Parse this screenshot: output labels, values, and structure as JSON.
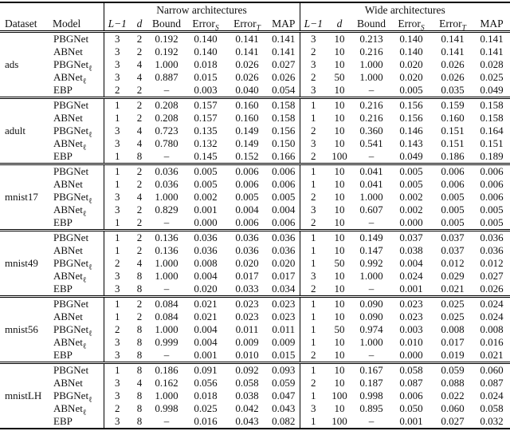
{
  "colors": {
    "background": "#ffffff",
    "text": "#111111",
    "rule": "#000000"
  },
  "table": {
    "group_headers": {
      "narrow": "Narrow architectures",
      "wide": "Wide architectures"
    },
    "row_headers": {
      "dataset": "Dataset",
      "model": "Model"
    },
    "columns": [
      {
        "main": "L−1",
        "sub": "",
        "italic": true
      },
      {
        "main": "d",
        "sub": "",
        "italic": true
      },
      {
        "main": "Bound",
        "sub": "",
        "italic": false
      },
      {
        "main": "Error",
        "sub": "S",
        "italic": false
      },
      {
        "main": "Error",
        "sub": "T",
        "italic": false
      },
      {
        "main": "MAP",
        "sub": "",
        "italic": false
      }
    ],
    "missing_value": "–",
    "sections": [
      {
        "dataset": "ads",
        "rows": [
          {
            "model": "PBGNet",
            "sub": "",
            "values": [
              "3",
              "2",
              "0.192",
              "0.140",
              "0.141",
              "0.141",
              "3",
              "10",
              "0.213",
              "0.140",
              "0.141",
              "0.141"
            ]
          },
          {
            "model": "ABNet",
            "sub": "",
            "values": [
              "3",
              "2",
              "0.192",
              "0.140",
              "0.141",
              "0.141",
              "2",
              "10",
              "0.216",
              "0.140",
              "0.141",
              "0.141"
            ]
          },
          {
            "model": "PBGNet",
            "sub": "ℓ",
            "values": [
              "3",
              "4",
              "1.000",
              "0.018",
              "0.026",
              "0.027",
              "3",
              "10",
              "1.000",
              "0.020",
              "0.026",
              "0.028"
            ]
          },
          {
            "model": "ABNet",
            "sub": "ℓ",
            "values": [
              "3",
              "4",
              "0.887",
              "0.015",
              "0.026",
              "0.026",
              "2",
              "50",
              "1.000",
              "0.020",
              "0.026",
              "0.025"
            ]
          },
          {
            "model": "EBP",
            "sub": "",
            "values": [
              "2",
              "2",
              "–",
              "0.003",
              "0.040",
              "0.054",
              "3",
              "10",
              "–",
              "0.005",
              "0.035",
              "0.049"
            ]
          }
        ]
      },
      {
        "dataset": "adult",
        "rows": [
          {
            "model": "PBGNet",
            "sub": "",
            "values": [
              "1",
              "2",
              "0.208",
              "0.157",
              "0.160",
              "0.158",
              "1",
              "10",
              "0.216",
              "0.156",
              "0.159",
              "0.158"
            ]
          },
          {
            "model": "ABNet",
            "sub": "",
            "values": [
              "1",
              "2",
              "0.208",
              "0.157",
              "0.160",
              "0.158",
              "1",
              "10",
              "0.216",
              "0.156",
              "0.160",
              "0.158"
            ]
          },
          {
            "model": "PBGNet",
            "sub": "ℓ",
            "values": [
              "3",
              "4",
              "0.723",
              "0.135",
              "0.149",
              "0.156",
              "2",
              "10",
              "0.360",
              "0.146",
              "0.151",
              "0.164"
            ]
          },
          {
            "model": "ABNet",
            "sub": "ℓ",
            "values": [
              "3",
              "4",
              "0.780",
              "0.132",
              "0.149",
              "0.150",
              "3",
              "10",
              "0.541",
              "0.143",
              "0.151",
              "0.151"
            ]
          },
          {
            "model": "EBP",
            "sub": "",
            "values": [
              "1",
              "8",
              "–",
              "0.145",
              "0.152",
              "0.166",
              "2",
              "100",
              "–",
              "0.049",
              "0.186",
              "0.189"
            ]
          }
        ]
      },
      {
        "dataset": "mnist17",
        "rows": [
          {
            "model": "PBGNet",
            "sub": "",
            "values": [
              "1",
              "2",
              "0.036",
              "0.005",
              "0.006",
              "0.006",
              "1",
              "10",
              "0.041",
              "0.005",
              "0.006",
              "0.006"
            ]
          },
          {
            "model": "ABNet",
            "sub": "",
            "values": [
              "1",
              "2",
              "0.036",
              "0.005",
              "0.006",
              "0.006",
              "1",
              "10",
              "0.041",
              "0.005",
              "0.006",
              "0.006"
            ]
          },
          {
            "model": "PBGNet",
            "sub": "ℓ",
            "values": [
              "3",
              "4",
              "1.000",
              "0.002",
              "0.005",
              "0.005",
              "2",
              "10",
              "1.000",
              "0.002",
              "0.005",
              "0.006"
            ]
          },
          {
            "model": "ABNet",
            "sub": "ℓ",
            "values": [
              "3",
              "2",
              "0.829",
              "0.001",
              "0.004",
              "0.004",
              "3",
              "10",
              "0.607",
              "0.002",
              "0.005",
              "0.005"
            ]
          },
          {
            "model": "EBP",
            "sub": "",
            "values": [
              "1",
              "2",
              "–",
              "0.000",
              "0.006",
              "0.006",
              "2",
              "10",
              "–",
              "0.000",
              "0.005",
              "0.005"
            ]
          }
        ]
      },
      {
        "dataset": "mnist49",
        "rows": [
          {
            "model": "PBGNet",
            "sub": "",
            "values": [
              "1",
              "2",
              "0.136",
              "0.036",
              "0.036",
              "0.036",
              "1",
              "10",
              "0.149",
              "0.037",
              "0.037",
              "0.036"
            ]
          },
          {
            "model": "ABNet",
            "sub": "",
            "values": [
              "1",
              "2",
              "0.136",
              "0.036",
              "0.036",
              "0.036",
              "1",
              "10",
              "0.147",
              "0.038",
              "0.037",
              "0.036"
            ]
          },
          {
            "model": "PBGNet",
            "sub": "ℓ",
            "values": [
              "2",
              "4",
              "1.000",
              "0.008",
              "0.020",
              "0.020",
              "1",
              "50",
              "0.992",
              "0.004",
              "0.012",
              "0.012"
            ]
          },
          {
            "model": "ABNet",
            "sub": "ℓ",
            "values": [
              "3",
              "8",
              "1.000",
              "0.004",
              "0.017",
              "0.017",
              "3",
              "10",
              "1.000",
              "0.024",
              "0.029",
              "0.027"
            ]
          },
          {
            "model": "EBP",
            "sub": "",
            "values": [
              "3",
              "8",
              "–",
              "0.020",
              "0.033",
              "0.034",
              "2",
              "10",
              "–",
              "0.001",
              "0.021",
              "0.026"
            ]
          }
        ]
      },
      {
        "dataset": "mnist56",
        "rows": [
          {
            "model": "PBGNet",
            "sub": "",
            "values": [
              "1",
              "2",
              "0.084",
              "0.021",
              "0.023",
              "0.023",
              "1",
              "10",
              "0.090",
              "0.023",
              "0.025",
              "0.024"
            ]
          },
          {
            "model": "ABNet",
            "sub": "",
            "values": [
              "1",
              "2",
              "0.084",
              "0.021",
              "0.023",
              "0.023",
              "1",
              "10",
              "0.090",
              "0.023",
              "0.025",
              "0.024"
            ]
          },
          {
            "model": "PBGNet",
            "sub": "ℓ",
            "values": [
              "2",
              "8",
              "1.000",
              "0.004",
              "0.011",
              "0.011",
              "1",
              "50",
              "0.974",
              "0.003",
              "0.008",
              "0.008"
            ]
          },
          {
            "model": "ABNet",
            "sub": "ℓ",
            "values": [
              "3",
              "8",
              "0.999",
              "0.004",
              "0.009",
              "0.009",
              "1",
              "10",
              "1.000",
              "0.010",
              "0.017",
              "0.016"
            ]
          },
          {
            "model": "EBP",
            "sub": "",
            "values": [
              "3",
              "8",
              "–",
              "0.001",
              "0.010",
              "0.015",
              "2",
              "10",
              "–",
              "0.000",
              "0.019",
              "0.021"
            ]
          }
        ]
      },
      {
        "dataset": "mnistLH",
        "rows": [
          {
            "model": "PBGNet",
            "sub": "",
            "values": [
              "1",
              "8",
              "0.186",
              "0.091",
              "0.092",
              "0.093",
              "1",
              "10",
              "0.167",
              "0.058",
              "0.059",
              "0.060"
            ]
          },
          {
            "model": "ABNet",
            "sub": "",
            "values": [
              "3",
              "4",
              "0.162",
              "0.056",
              "0.058",
              "0.059",
              "2",
              "10",
              "0.187",
              "0.087",
              "0.088",
              "0.087"
            ]
          },
          {
            "model": "PBGNet",
            "sub": "ℓ",
            "values": [
              "3",
              "8",
              "1.000",
              "0.018",
              "0.038",
              "0.047",
              "1",
              "100",
              "0.998",
              "0.006",
              "0.022",
              "0.024"
            ]
          },
          {
            "model": "ABNet",
            "sub": "ℓ",
            "values": [
              "2",
              "8",
              "0.998",
              "0.025",
              "0.042",
              "0.043",
              "3",
              "10",
              "0.895",
              "0.050",
              "0.060",
              "0.058"
            ]
          },
          {
            "model": "EBP",
            "sub": "",
            "values": [
              "3",
              "8",
              "–",
              "0.016",
              "0.043",
              "0.082",
              "1",
              "100",
              "–",
              "0.001",
              "0.027",
              "0.032"
            ]
          }
        ]
      }
    ]
  }
}
